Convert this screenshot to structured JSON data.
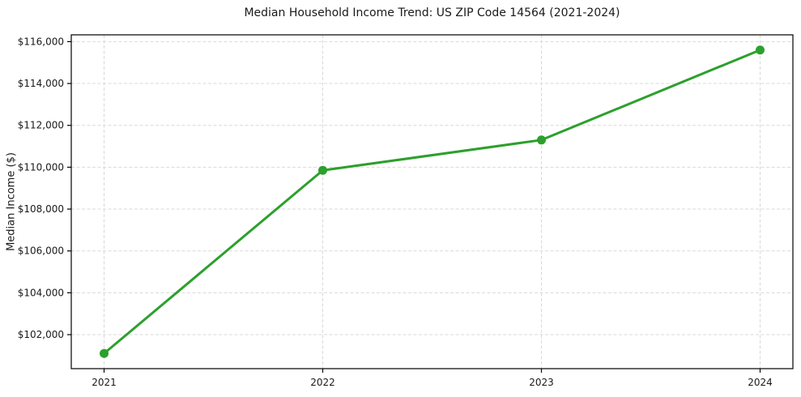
{
  "chart_data": {
    "type": "line",
    "title": "Median Household Income Trend: US ZIP Code 14564 (2021-2024)",
    "xlabel": "",
    "ylabel": "Median Income ($)",
    "categories": [
      "2021",
      "2022",
      "2023",
      "2024"
    ],
    "series": [
      {
        "name": "Median Household Income",
        "values": [
          101100,
          109850,
          111300,
          115600
        ],
        "color": "#2ca02c",
        "marker": "circle"
      }
    ],
    "y_ticks": [
      {
        "value": 102000,
        "label": "$102,000"
      },
      {
        "value": 104000,
        "label": "$104,000"
      },
      {
        "value": 106000,
        "label": "$106,000"
      },
      {
        "value": 108000,
        "label": "$108,000"
      },
      {
        "value": 110000,
        "label": "$110,000"
      },
      {
        "value": 112000,
        "label": "$112,000"
      },
      {
        "value": 114000,
        "label": "$114,000"
      },
      {
        "value": 116000,
        "label": "$116,000"
      }
    ],
    "ylim": [
      100375,
      116325
    ],
    "x_margin": 0.15,
    "grid": "both-dashed",
    "legend": "none"
  },
  "styles": {
    "line_color": "#2ca02c",
    "grid_color": "#d9d9d9",
    "axis_color": "#000000",
    "text_color": "#1a1a1a",
    "background": "#ffffff"
  }
}
